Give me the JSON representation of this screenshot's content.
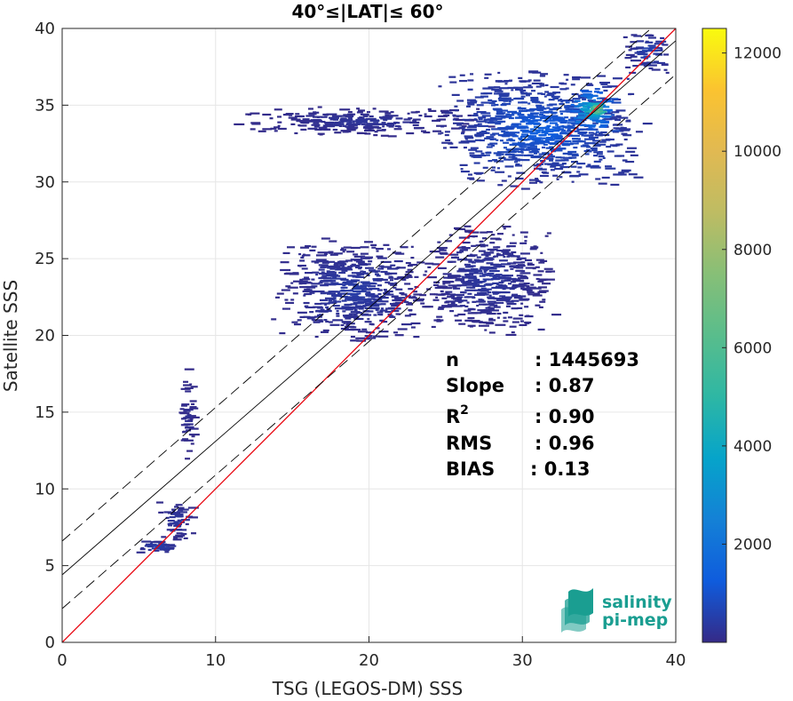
{
  "chart_data": {
    "type": "scatter",
    "title": "40°≤|LAT|≤ 60°",
    "xlabel": "TSG (LEGOS-DM) SSS",
    "ylabel": "Satellite SSS",
    "xlim": [
      0,
      40
    ],
    "ylim": [
      0,
      40
    ],
    "xticks": [
      "0",
      "10",
      "20",
      "30",
      "40"
    ],
    "yticks": [
      "0",
      "5",
      "10",
      "15",
      "20",
      "25",
      "30",
      "35",
      "40"
    ],
    "grid": true,
    "colorbar": {
      "ticks": [
        "2000",
        "4000",
        "6000",
        "8000",
        "10000",
        "12000"
      ],
      "values": [
        2000,
        4000,
        6000,
        8000,
        10000,
        12000
      ],
      "range": [
        0,
        12500
      ],
      "colormap": "parula"
    },
    "lines": [
      {
        "name": "1:1",
        "color": "#e8000b",
        "style": "solid",
        "slope": 1.0,
        "intercept": 0.0
      },
      {
        "name": "fit",
        "color": "#000000",
        "style": "solid",
        "slope": 0.87,
        "intercept": 4.4
      },
      {
        "name": "fit-upper",
        "color": "#000000",
        "style": "dashed",
        "slope": 0.87,
        "intercept": 6.6
      },
      {
        "name": "fit-lower",
        "color": "#000000",
        "style": "dashed",
        "slope": 0.87,
        "intercept": 2.2
      }
    ],
    "density_clusters": [
      {
        "x": [
          4.5,
          7.5
        ],
        "y": [
          5.8,
          6.8
        ],
        "level": 600
      },
      {
        "x": [
          6.0,
          8.5
        ],
        "y": [
          6.5,
          9.5
        ],
        "level": 400
      },
      {
        "x": [
          7.5,
          8.5
        ],
        "y": [
          11.5,
          18.0
        ],
        "level": 200
      },
      {
        "x": [
          13.5,
          24.0
        ],
        "y": [
          19.5,
          26.5
        ],
        "level": 500
      },
      {
        "x": [
          23.0,
          32.0
        ],
        "y": [
          20.0,
          27.5
        ],
        "level": 400
      },
      {
        "x": [
          11.0,
          28.0
        ],
        "y": [
          33.0,
          35.0
        ],
        "level": 300
      },
      {
        "x": [
          24.0,
          38.0
        ],
        "y": [
          29.5,
          37.5
        ],
        "level": 1500
      },
      {
        "x": [
          32.5,
          36.0
        ],
        "y": [
          33.0,
          36.5
        ],
        "level": 5000
      },
      {
        "x": [
          34.0,
          35.3
        ],
        "y": [
          34.0,
          35.6
        ],
        "level": 10000
      },
      {
        "x": [
          36.5,
          39.5
        ],
        "y": [
          37.0,
          40.0
        ],
        "level": 800
      }
    ],
    "stats": [
      {
        "label": "n",
        "value": ": 1445693"
      },
      {
        "label": "Slope",
        "value": ": 0.87"
      },
      {
        "label": "R2",
        "value": ": 0.90"
      },
      {
        "label": "RMS",
        "value": ": 0.96"
      },
      {
        "label": "BIAS",
        "value": ": 0.13"
      }
    ]
  },
  "logo": {
    "line1": "salinity",
    "line2": "pi-mep"
  }
}
